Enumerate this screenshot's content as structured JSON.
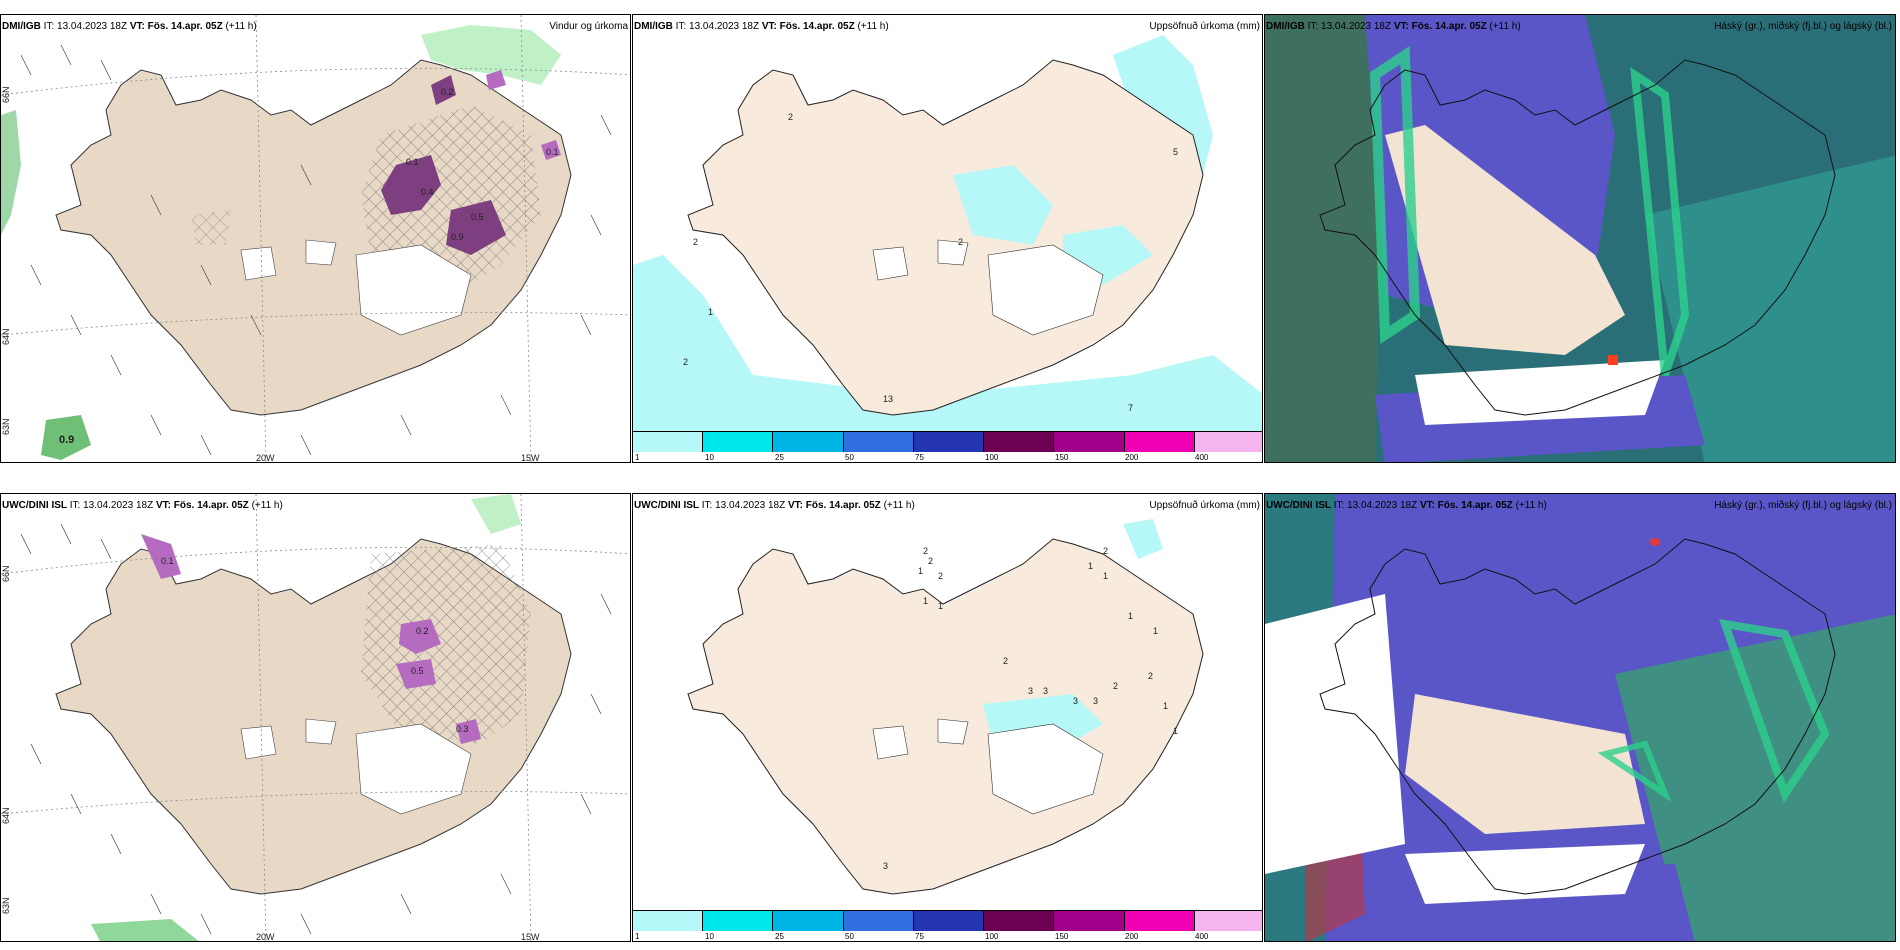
{
  "header": {
    "it_label": "IT:",
    "vt_label": "VT:",
    "init_time": "13.04.2023 18Z",
    "valid_time": "Fös. 14.apr. 05Z",
    "lead": "(+11 h)"
  },
  "rows": [
    {
      "model": "DMI/IGB"
    },
    {
      "model": "UWC/DINI ISL"
    }
  ],
  "products": {
    "wind_precip": "Vindur og úrkoma",
    "accum_precip": "Uppsöfnuð úrkoma (mm)",
    "clouds": "Háský (gr.), miðský (fj.bl.) og lágský (bl.)"
  },
  "axis_labels": {
    "lon_20w": "20W",
    "lon_15w": "15W",
    "lat_66n": "66N",
    "lat_64n": "64N",
    "lat_63n_left": "63N"
  },
  "colorbar": {
    "levels": [
      "1",
      "10",
      "25",
      "50",
      "75",
      "100",
      "150",
      "200",
      "400"
    ],
    "colors": [
      "#b6f7f7",
      "#00e8ec",
      "#00b6e6",
      "#2f6fe0",
      "#2435b3",
      "#6d0050",
      "#a0008a",
      "#f000b4",
      "#f5b4f0"
    ]
  },
  "map_annotations": {
    "top_left_values": [
      "0.1",
      "0.4",
      "0.9",
      "0.2",
      "0.5",
      "0.1"
    ],
    "top_left_corner_value": "0.9",
    "bottom_left_values": [
      "0.2",
      "0.5",
      "0.3",
      "0.1"
    ],
    "top_mid_values": [
      "2",
      "5",
      "2",
      "1",
      "2",
      "2",
      "7",
      "13"
    ],
    "bottom_mid_values": [
      "2",
      "1",
      "2",
      "2",
      "1",
      "1",
      "1",
      "2",
      "1",
      "1",
      "1",
      "2",
      "1",
      "1",
      "3",
      "3",
      "3",
      "3",
      "2",
      "2",
      "3"
    ]
  },
  "colors": {
    "land": "#f3e3d3",
    "land_dark": "#e7d8c8",
    "precip_purple": "#7e3f80",
    "precip_green": "#bff0c6",
    "cyan_light": "#b6f7f7",
    "cloud_purple": "#5a56c8",
    "cloud_teal": "#2a7a80",
    "cloud_green": "#2ccf8c",
    "cloud_gray": "#3f6f5f"
  }
}
